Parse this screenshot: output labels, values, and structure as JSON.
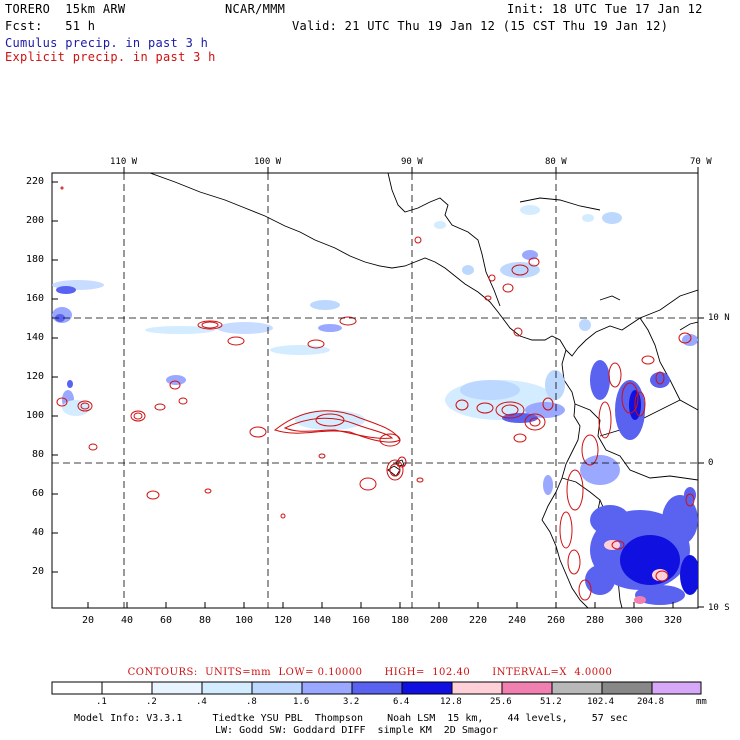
{
  "header": {
    "model": "TORERO  15km ARW",
    "org": "NCAR/MMM",
    "init": "Init: 18 UTC Tue 17 Jan 12",
    "fcst": "Fcst:   51 h",
    "valid": "Valid: 21 UTC Thu 19 Jan 12 (15 CST Thu 19 Jan 12)",
    "field1": "Cumulus precip. in past 3 h",
    "field2": "Explicit precip. in past 3 h",
    "field1_color": "#1a1aa8",
    "field2_color": "#d01010"
  },
  "map": {
    "lon_labels": [
      "110 W",
      "100 W",
      "90 W",
      "80 W",
      "70 W"
    ],
    "lat_labels": [
      "10 N",
      "0",
      "10 S"
    ],
    "y_ticks": [
      "220",
      "200",
      "180",
      "160",
      "140",
      "120",
      "100",
      "80",
      "60",
      "40",
      "20"
    ],
    "x_ticks": [
      "20",
      "40",
      "60",
      "80",
      "100",
      "120",
      "140",
      "160",
      "180",
      "200",
      "220",
      "240",
      "260",
      "280",
      "300",
      "320"
    ]
  },
  "contours_info": "CONTOURS:  UNITS=mm  LOW= 0.10000      HIGH=  102.40      INTERVAL=X  4.0000",
  "legend": {
    "labels": [
      ".1",
      ".2",
      ".4",
      ".8",
      "1.6",
      "3.2",
      "6.4",
      "12.8",
      "25.6",
      "51.2",
      "102.4",
      "204.8"
    ],
    "unit": "mm",
    "colors": [
      "#ffffff",
      "#ffffff",
      "#e8f4ff",
      "#d4ecff",
      "#bcd8ff",
      "#9aa8ff",
      "#5a62f0",
      "#1010e0",
      "#ffd0d8",
      "#f080b0",
      "#b8b8b8",
      "#888888",
      "#d8a8f8"
    ]
  },
  "footer": {
    "line1": "Model Info: V3.3.1     Tiedtke YSU PBL  Thompson    Noah LSM  15 km,    44 levels,    57 sec",
    "line2": "LW: Godd SW: Goddard DIFF  simple KM  2D Smagor"
  }
}
